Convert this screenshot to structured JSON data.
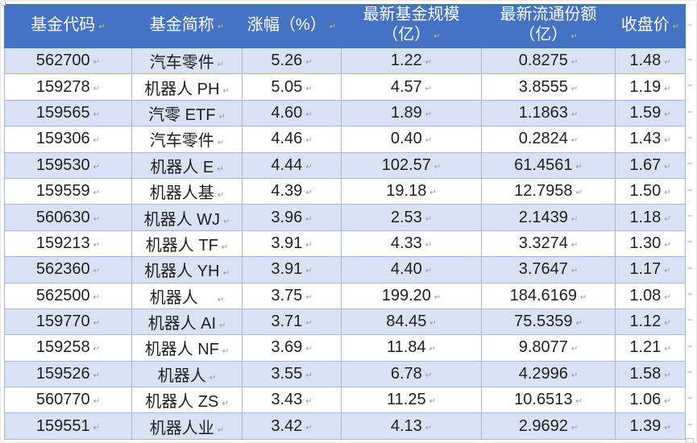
{
  "colors": {
    "header_bg": "#4472C4",
    "header_text": "#FFFFFF",
    "band_bg": "#D9E2F3",
    "row_bg": "#FFFFFF",
    "border": "#A6B7DC",
    "text": "#1F1F1F",
    "cell_mark": "#8F9AA8",
    "header_mark": "#C9BB82"
  },
  "marks": {
    "cell_end_glyph": "↵"
  },
  "table": {
    "columns": [
      "基金代码",
      "基金简称",
      "涨幅（%）",
      "最新基金规模（亿）",
      "最新流通份额\n（亿）",
      "收盘价"
    ],
    "rows": [
      [
        "562700",
        "汽车零件",
        "5.26",
        "1.22",
        "0.8275",
        "1.48"
      ],
      [
        "159278",
        "机器人 PH",
        "5.05",
        "4.57",
        "3.8555",
        "1.19"
      ],
      [
        "159565",
        "汽零 ETF",
        "4.60",
        "1.89",
        "1.1863",
        "1.59"
      ],
      [
        "159306",
        "汽车零件",
        "4.46",
        "0.40",
        "0.2824",
        "1.43"
      ],
      [
        "159530",
        "机器人 E",
        "4.44",
        "102.57",
        "61.4561",
        "1.67"
      ],
      [
        "159559",
        "机器人基",
        "4.39",
        "19.18",
        "12.7958",
        "1.50"
      ],
      [
        "560630",
        "机器人 WJ",
        "3.96",
        "2.53",
        "2.1439",
        "1.18"
      ],
      [
        "159213",
        "机器人 TF",
        "3.91",
        "4.33",
        "3.3274",
        "1.30"
      ],
      [
        "562360",
        "机器人 YH",
        "3.91",
        "4.40",
        "3.7647",
        "1.17"
      ],
      [
        "562500",
        "机器人　",
        "3.75",
        "199.20",
        "184.6169",
        "1.08"
      ],
      [
        "159770",
        "机器人 AI",
        "3.71",
        "84.45",
        "75.5359",
        "1.12"
      ],
      [
        "159258",
        "机器人 NF",
        "3.69",
        "11.84",
        "9.8077",
        "1.21"
      ],
      [
        "159526",
        "机器人",
        "3.55",
        "6.78",
        "4.2996",
        "1.58"
      ],
      [
        "560770",
        "机器人 ZS",
        "3.43",
        "11.25",
        "10.6513",
        "1.06"
      ],
      [
        "159551",
        "机器人业",
        "3.42",
        "4.13",
        "2.9692",
        "1.39"
      ]
    ]
  }
}
